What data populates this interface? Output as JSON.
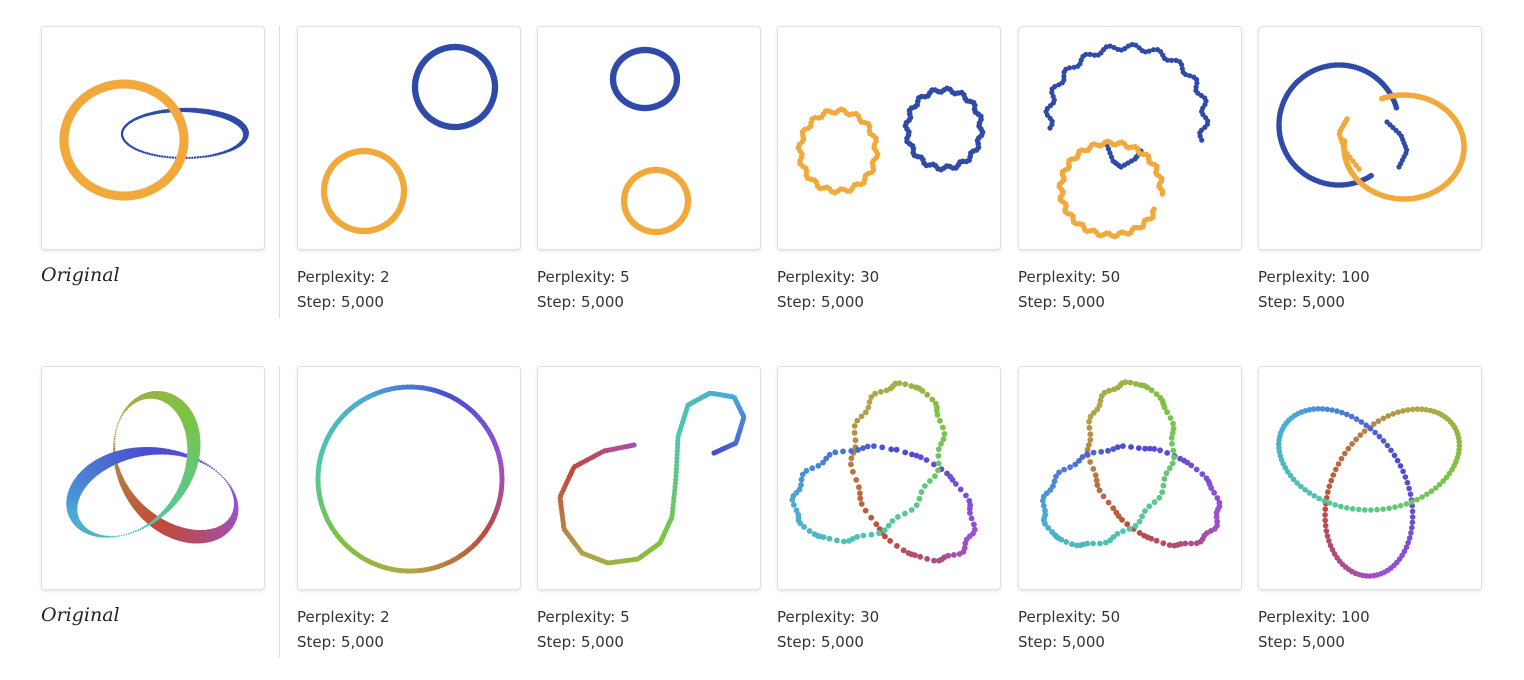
{
  "rows": [
    {
      "name": "linked-rings",
      "original_label": "Original",
      "palette": [
        "#f2a93b",
        "#2f4aa8"
      ],
      "runs": [
        {
          "perplexity_label": "Perplexity: 2",
          "step_label": "Step: 5,000"
        },
        {
          "perplexity_label": "Perplexity: 5",
          "step_label": "Step: 5,000"
        },
        {
          "perplexity_label": "Perplexity: 30",
          "step_label": "Step: 5,000"
        },
        {
          "perplexity_label": "Perplexity: 50",
          "step_label": "Step: 5,000"
        },
        {
          "perplexity_label": "Perplexity: 100",
          "step_label": "Step: 5,000"
        }
      ]
    },
    {
      "name": "trefoil-knot",
      "original_label": "Original",
      "palette": [
        "#4a4bd0",
        "#9b50d6",
        "#c04a3a",
        "#b2a548",
        "#7cc440",
        "#4ec8a8",
        "#4aa8d8"
      ],
      "runs": [
        {
          "perplexity_label": "Perplexity: 2",
          "step_label": "Step: 5,000"
        },
        {
          "perplexity_label": "Perplexity: 5",
          "step_label": "Step: 5,000"
        },
        {
          "perplexity_label": "Perplexity: 30",
          "step_label": "Step: 5,000"
        },
        {
          "perplexity_label": "Perplexity: 50",
          "step_label": "Step: 5,000"
        },
        {
          "perplexity_label": "Perplexity: 100",
          "step_label": "Step: 5,000"
        }
      ]
    }
  ]
}
